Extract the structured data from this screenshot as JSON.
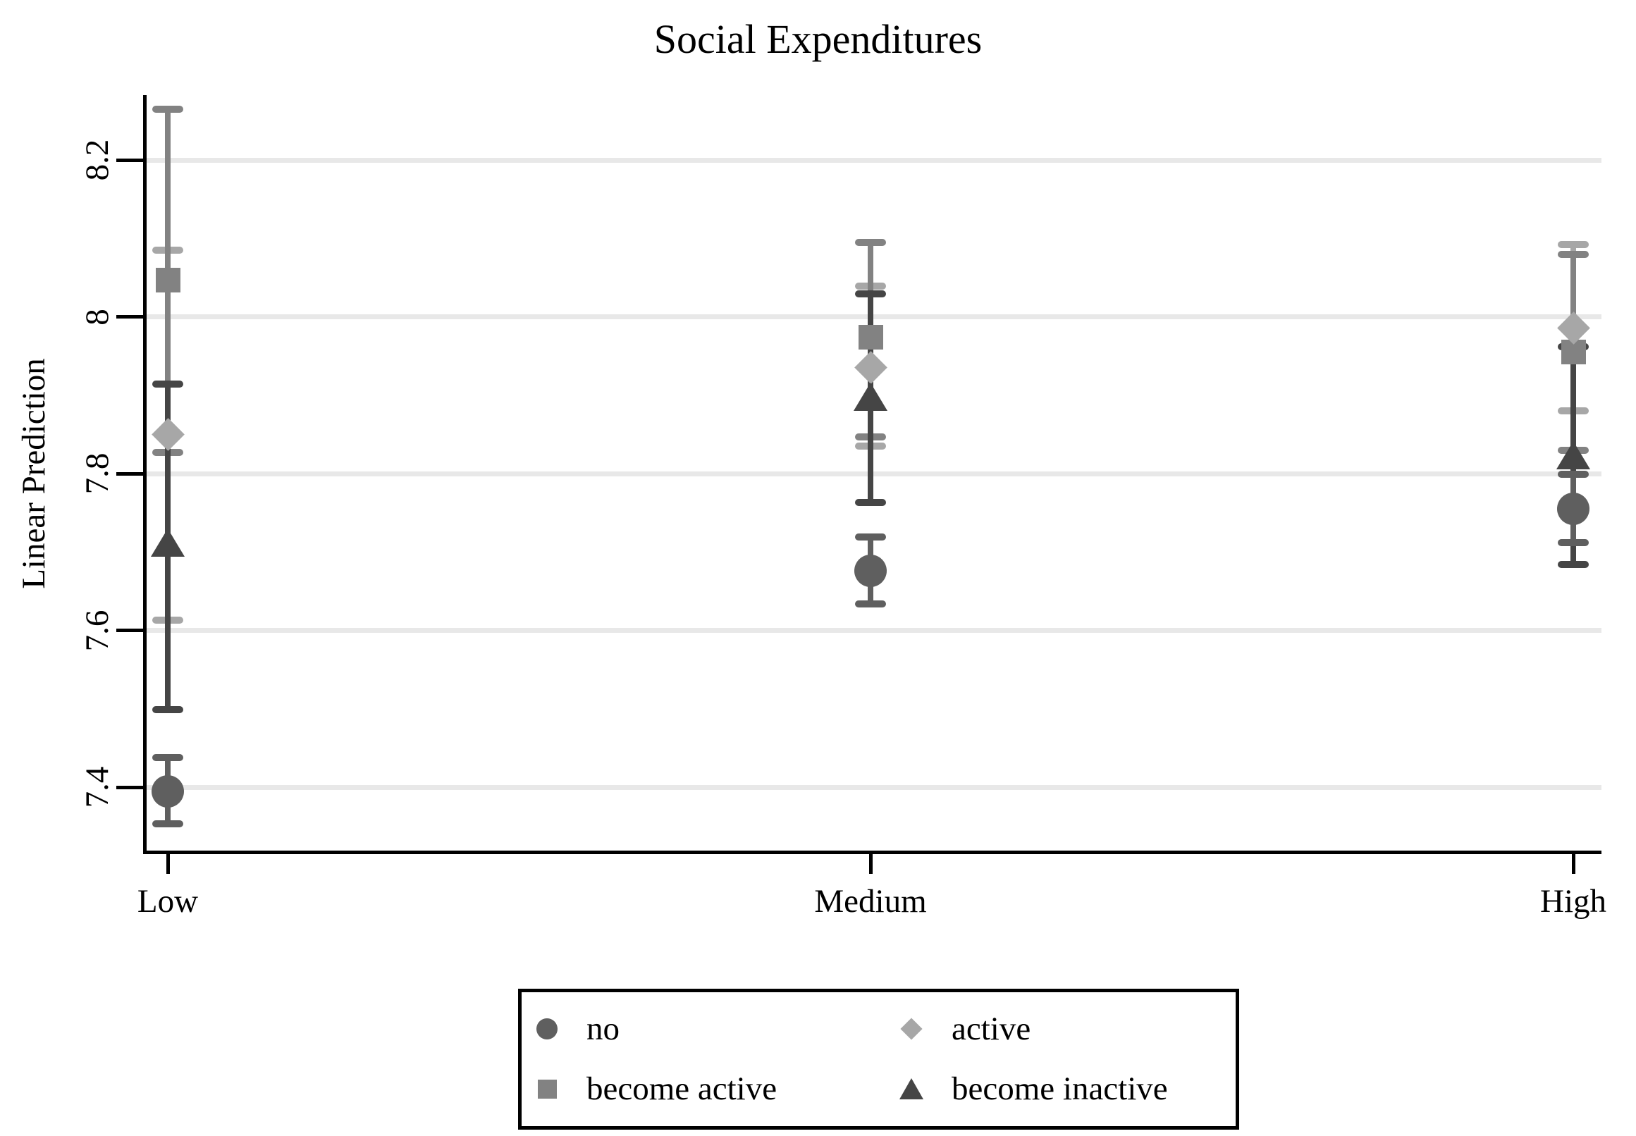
{
  "title": "Social Expenditures",
  "ylabel": "Linear Prediction",
  "chart_data": {
    "type": "scatter",
    "subtype": "point-estimates-with-confidence-intervals",
    "title": "Social Expenditures",
    "xlabel": "",
    "ylabel": "Linear Prediction",
    "categories": [
      "Low",
      "Medium",
      "High"
    ],
    "ylim": [
      7.32,
      8.28
    ],
    "yticks": [
      8.2,
      8.0,
      7.8,
      7.6,
      7.4
    ],
    "ytick_labels": [
      "8.2",
      "8",
      "7.8",
      "7.6",
      "7.4"
    ],
    "grid": true,
    "legend_position": "bottom",
    "background_color": "#ffffff",
    "gridline_color": "#e8e8e8",
    "axis_color": "#000000",
    "series": [
      {
        "name": "no",
        "marker": "circle",
        "color": "#5f5f5f",
        "values": [
          7.395,
          7.676,
          7.755
        ],
        "ci_low": [
          7.353,
          7.634,
          7.712
        ],
        "ci_high": [
          7.438,
          7.719,
          7.799
        ]
      },
      {
        "name": "active",
        "marker": "diamond",
        "color": "#a7a7a7",
        "values": [
          7.85,
          7.935,
          7.986
        ],
        "ci_low": [
          7.613,
          7.835,
          7.88
        ],
        "ci_high": [
          8.085,
          8.039,
          8.092
        ]
      },
      {
        "name": "become active",
        "marker": "square",
        "color": "#828282",
        "values": [
          8.047,
          7.974,
          7.955
        ],
        "ci_low": [
          7.827,
          7.847,
          7.83
        ],
        "ci_high": [
          8.265,
          8.095,
          8.08
        ]
      },
      {
        "name": "become inactive",
        "marker": "triangle",
        "color": "#454545",
        "values": [
          7.712,
          7.898,
          7.823
        ],
        "ci_low": [
          7.499,
          7.763,
          7.684
        ],
        "ci_high": [
          7.914,
          8.029,
          7.962
        ]
      }
    ]
  }
}
